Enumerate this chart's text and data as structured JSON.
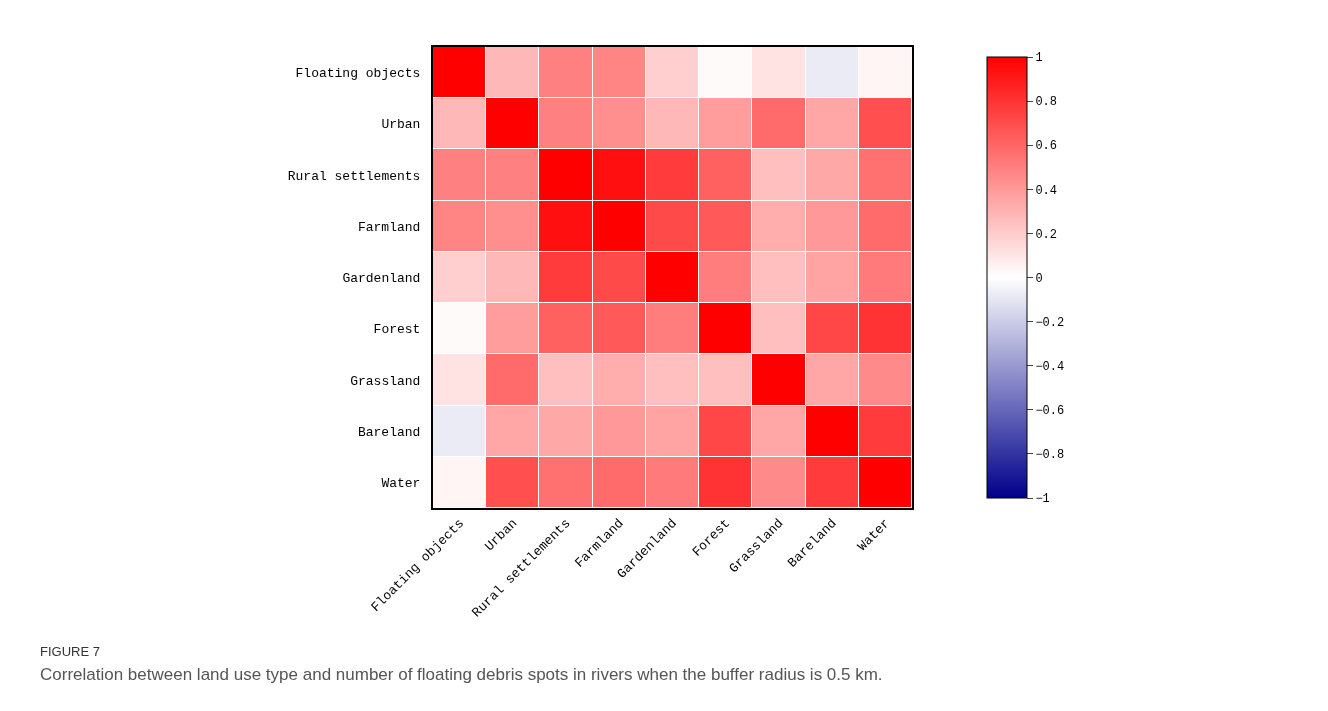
{
  "chart_data": {
    "type": "heatmap",
    "categories": [
      "Floating objects",
      "Urban",
      "Rural settlements",
      "Farmland",
      "Gardenland",
      "Forest",
      "Grassland",
      "Bareland",
      "Water"
    ],
    "y_categories": [
      "Floating objects",
      "Urban",
      "Rural settlements",
      "Farmland",
      "Gardenland",
      "Forest",
      "Grassland",
      "Bareland",
      "Water"
    ],
    "cells": [
      [
        1,
        0.28,
        0.5,
        0.48,
        0.19,
        0.02,
        0.11,
        -0.08,
        0.04
      ],
      [
        0.28,
        1,
        0.5,
        0.44,
        0.28,
        0.39,
        0.58,
        0.35,
        0.69
      ],
      [
        0.5,
        0.5,
        1,
        0.94,
        0.77,
        0.62,
        0.25,
        0.34,
        0.56
      ],
      [
        0.48,
        0.44,
        0.94,
        1,
        0.71,
        0.65,
        0.32,
        0.4,
        0.58
      ],
      [
        0.19,
        0.28,
        0.77,
        0.71,
        1,
        0.51,
        0.25,
        0.36,
        0.52
      ],
      [
        0.02,
        0.39,
        0.62,
        0.65,
        0.51,
        1,
        0.25,
        0.72,
        0.8
      ],
      [
        0.11,
        0.58,
        0.25,
        0.32,
        0.25,
        0.25,
        1,
        0.35,
        0.46
      ],
      [
        -0.08,
        0.35,
        0.34,
        0.4,
        0.36,
        0.72,
        0.35,
        1,
        0.77
      ],
      [
        0.04,
        0.69,
        0.56,
        0.58,
        0.52,
        0.8,
        0.46,
        0.77,
        1
      ]
    ],
    "clim": [
      -1,
      1
    ],
    "cticks": [
      -1,
      {
        "value": -0.8,
        "label": "−0.8"
      },
      {
        "value": -0.6,
        "label": "−0.6"
      },
      {
        "value": -0.4,
        "label": "−0.4"
      },
      {
        "value": -0.2,
        "label": "−0.2"
      },
      0,
      0.2,
      0.4,
      0.6,
      0.8,
      1
    ],
    "annotations": [
      "FIGURE 7",
      "Correlation between land use type and number of floating debris spots in rivers when the buffer radius is 0.5 km."
    ]
  }
}
